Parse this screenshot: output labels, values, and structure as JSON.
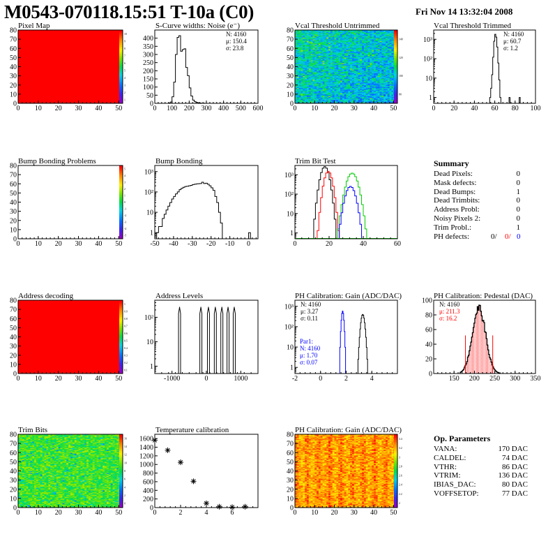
{
  "header": {
    "title": "M0543-070118.15:51 T-10a (C0)",
    "date": "Fri Nov 14 13:32:04 2008"
  },
  "colors": {
    "red": "#ff0000",
    "blue": "#0000ff",
    "green": "#00cc00"
  },
  "chart_data": [
    {
      "id": "pixel-map",
      "type": "heatmap",
      "title": "Pixel Map",
      "xlim": [
        0,
        52
      ],
      "ylim": [
        0,
        80
      ],
      "xticks": [
        "0",
        "10",
        "20",
        "30",
        "40",
        "50"
      ],
      "yticks": [
        "0",
        "10",
        "20",
        "30",
        "40",
        "50",
        "60",
        "70",
        "80"
      ],
      "zticks": [
        "1",
        "2",
        "3",
        "4",
        "5",
        "6",
        "7",
        "8",
        "9",
        "10"
      ],
      "fill": "uniform-max"
    },
    {
      "id": "scurve-noise",
      "type": "histogram",
      "title": "S-Curve widths: Noise (e⁻)",
      "xlim": [
        0,
        600
      ],
      "ylim": [
        0,
        450
      ],
      "xticks": [
        "0",
        "100",
        "200",
        "300",
        "400",
        "500",
        "600"
      ],
      "yticks": [
        "0",
        "50",
        "100",
        "150",
        "200",
        "250",
        "300",
        "350",
        "400"
      ],
      "stats": [
        "N: 4160",
        "μ: 150.4",
        "σ: 23.8"
      ],
      "bin_width": 10,
      "bins_x": [
        70,
        80,
        90,
        100,
        110,
        120,
        130,
        140,
        150,
        160,
        170,
        180,
        190,
        200,
        210,
        220,
        230,
        240,
        250,
        260,
        270,
        280,
        290
      ],
      "values": [
        0,
        2,
        8,
        40,
        130,
        300,
        405,
        415,
        320,
        330,
        335,
        220,
        170,
        95,
        45,
        20,
        10,
        6,
        3,
        2,
        0,
        1,
        0
      ]
    },
    {
      "id": "vcal-untrimmed",
      "type": "heatmap",
      "title": "Vcal Threshold Untrimmed",
      "xlim": [
        0,
        52
      ],
      "ylim": [
        0,
        80
      ],
      "xticks": [
        "0",
        "10",
        "20",
        "30",
        "40",
        "50"
      ],
      "yticks": [
        "0",
        "10",
        "20",
        "30",
        "40",
        "50",
        "60",
        "70",
        "80"
      ],
      "zticks": [
        "80",
        "100",
        "120",
        "140"
      ],
      "fill": "random-cool"
    },
    {
      "id": "vcal-trimmed",
      "type": "histogram",
      "title": "Vcal Threshold Trimmed",
      "log": true,
      "xlim": [
        0,
        100
      ],
      "ylim": [
        0.5,
        3000
      ],
      "xticks": [
        "0",
        "20",
        "40",
        "60",
        "80",
        "100"
      ],
      "yticks": [
        "1",
        "10",
        "10²",
        "10³"
      ],
      "stats": [
        "N: 4160",
        "μ: 60.7",
        "σ:  1.2"
      ],
      "bin_width": 1,
      "bins_x": [
        55,
        56,
        57,
        58,
        59,
        60,
        61,
        62,
        63,
        64,
        65,
        66,
        74,
        75,
        84,
        85
      ],
      "values": [
        1,
        3,
        15,
        120,
        800,
        1800,
        1300,
        400,
        60,
        8,
        1,
        0,
        1,
        0,
        1,
        0
      ]
    },
    {
      "id": "bump-problems",
      "type": "heatmap",
      "title": "Bump Bonding Problems",
      "xlim": [
        0,
        52
      ],
      "ylim": [
        0,
        80
      ],
      "xticks": [
        "0",
        "10",
        "20",
        "30",
        "40",
        "50"
      ],
      "yticks": [
        "0",
        "10",
        "20",
        "30",
        "40",
        "50",
        "60",
        "70",
        "80"
      ],
      "zticks": [
        "-5",
        "-4",
        "-3",
        "-2",
        "-1",
        "0",
        "1",
        "2",
        "3",
        "4",
        "5"
      ],
      "fill": "empty"
    },
    {
      "id": "bump-bonding",
      "type": "histogram",
      "title": "Bump Bonding",
      "log": true,
      "xlim": [
        -50,
        5
      ],
      "ylim": [
        0.5,
        2000
      ],
      "xticks": [
        "-50",
        "-40",
        "-30",
        "-20",
        "-10",
        "0"
      ],
      "yticks": [
        "1",
        "10",
        "10²",
        "10³"
      ],
      "bin_width": 1,
      "bins_x": [
        -49,
        -48,
        -47,
        -46,
        -45,
        -44,
        -43,
        -42,
        -41,
        -40,
        -39,
        -38,
        -37,
        -36,
        -35,
        -34,
        -33,
        -32,
        -31,
        -30,
        -29,
        -28,
        -27,
        -26,
        -25,
        -24,
        -23,
        -22,
        -21,
        -20,
        -19,
        -18,
        -17,
        -16,
        -15,
        -14,
        0,
        1
      ],
      "values": [
        1,
        2,
        2,
        5,
        8,
        13,
        20,
        30,
        45,
        60,
        80,
        100,
        130,
        150,
        170,
        185,
        190,
        200,
        210,
        230,
        240,
        250,
        255,
        260,
        300,
        260,
        270,
        240,
        200,
        160,
        120,
        60,
        30,
        10,
        3,
        0,
        1,
        0
      ]
    },
    {
      "id": "trim-bit-test",
      "type": "histogram",
      "title": "Trim Bit Test",
      "log": true,
      "xlim": [
        0,
        60
      ],
      "ylim": [
        0.5,
        3000
      ],
      "xticks": [
        "0",
        "20",
        "40",
        "60"
      ],
      "yticks": [
        "1",
        "10",
        "10²",
        "10³"
      ]
    },
    {
      "id": "address-decoding",
      "type": "heatmap",
      "title": "Address decoding",
      "xlim": [
        0,
        52
      ],
      "ylim": [
        0,
        80
      ],
      "xticks": [
        "0",
        "10",
        "20",
        "30",
        "40",
        "50"
      ],
      "yticks": [
        "0",
        "10",
        "20",
        "30",
        "40",
        "50",
        "60",
        "70",
        "80"
      ],
      "zticks": [
        "0.1",
        "0.2",
        "0.3",
        "0.4",
        "0.5",
        "0.6",
        "0.7",
        "0.8",
        "0.9",
        "1"
      ],
      "fill": "uniform-max"
    },
    {
      "id": "address-levels",
      "type": "histogram",
      "title": "Address Levels",
      "log": true,
      "xlim": [
        -1500,
        1500
      ],
      "ylim": [
        0.5,
        500
      ],
      "xticks": [
        "-1000",
        "0",
        "1000"
      ],
      "yticks": [
        "1",
        "10",
        "10²"
      ],
      "peaks": [
        -780,
        -160,
        60,
        260,
        450,
        630,
        810
      ],
      "peak_height": 260
    },
    {
      "id": "ph-gain",
      "type": "histogram",
      "title": "PH Calibration: Gain (ADC/DAC)",
      "log": true,
      "xlim": [
        -2,
        6
      ],
      "ylim": [
        0.5,
        2000
      ],
      "xticks": [
        "-2",
        "0",
        "2",
        "4"
      ],
      "yticks": [
        "1",
        "10",
        "10²",
        "10³"
      ],
      "stats": [
        "N: 4160",
        "μ: 3.27",
        "σ: 0.11"
      ],
      "stats2": [
        "Par1:",
        "N: 4160",
        "μ: 1.70",
        "σ: 0.07"
      ]
    },
    {
      "id": "ph-pedestal",
      "type": "histogram",
      "title": "PH Calibration: Pedestal (DAC)",
      "xlim": [
        100,
        350
      ],
      "ylim": [
        0,
        100
      ],
      "xticks": [
        "150",
        "200",
        "250",
        "300",
        "350"
      ],
      "yticks": [
        "0",
        "20",
        "40",
        "60",
        "80",
        "100"
      ],
      "stats": [
        "N: 4160",
        "μ: 211.3",
        "σ: 16.2"
      ],
      "cut_lines": [
        178,
        245
      ]
    },
    {
      "id": "trim-bits",
      "type": "heatmap",
      "title": "Trim Bits",
      "xlim": [
        0,
        52
      ],
      "ylim": [
        0,
        80
      ],
      "xticks": [
        "0",
        "10",
        "20",
        "30",
        "40",
        "50"
      ],
      "yticks": [
        "0",
        "10",
        "20",
        "30",
        "40",
        "50",
        "60",
        "70",
        "80"
      ],
      "zticks": [
        "0",
        "2",
        "4",
        "6",
        "8",
        "10",
        "12",
        "14",
        "16"
      ],
      "fill": "random-mid"
    },
    {
      "id": "temperature-calibration",
      "type": "scatter",
      "title": "Temperature calibration",
      "xlim": [
        0,
        8
      ],
      "ylim": [
        0,
        1700
      ],
      "xticks": [
        "0",
        "2",
        "4",
        "6"
      ],
      "yticks": [
        "0",
        "200",
        "400",
        "600",
        "800",
        "1000",
        "1200",
        "1400",
        "1600"
      ],
      "x": [
        0,
        1,
        2,
        3,
        4,
        5,
        6,
        7
      ],
      "y": [
        1560,
        1330,
        1050,
        610,
        100,
        20,
        10,
        20
      ]
    },
    {
      "id": "ph-gain-map",
      "type": "heatmap",
      "title": "PH Calibration: Gain (ADC/DAC)",
      "xlim": [
        0,
        52
      ],
      "ylim": [
        0,
        80
      ],
      "xticks": [
        "0",
        "10",
        "20",
        "30",
        "40",
        "50"
      ],
      "yticks": [
        "0",
        "10",
        "20",
        "30",
        "40",
        "50",
        "60",
        "70",
        "80"
      ],
      "zticks": [
        "2",
        "2.2",
        "2.4",
        "2.6",
        "2.8",
        "3",
        "3.2",
        "3.4"
      ],
      "fill": "random-warm"
    }
  ],
  "summary": {
    "title": "Summary",
    "rows": [
      {
        "label": "Dead Pixels:",
        "value": "0"
      },
      {
        "label": "Mask defects:",
        "value": "0"
      },
      {
        "label": "Dead Bumps:",
        "value": "1"
      },
      {
        "label": "Dead Trimbits:",
        "value": "0"
      },
      {
        "label": "Address Probl:",
        "value": "0"
      },
      {
        "label": "Noisy Pixels 2:",
        "value": "0"
      },
      {
        "label": "Trim Probl.:",
        "value": "1"
      }
    ],
    "ph_defects_label": "PH defects:",
    "ph_defects_values": [
      "0/",
      "0/",
      "0"
    ]
  },
  "op_params": {
    "title": "Op. Parameters",
    "rows": [
      {
        "label": "VANA:",
        "value": "170 DAC"
      },
      {
        "label": "CALDEL:",
        "value": "74 DAC"
      },
      {
        "label": "VTHR:",
        "value": "86 DAC"
      },
      {
        "label": "VTRIM:",
        "value": "136 DAC"
      },
      {
        "label": "IBIAS_DAC:",
        "value": "80 DAC"
      },
      {
        "label": "VOFFSETOP:",
        "value": "77 DAC"
      }
    ]
  }
}
